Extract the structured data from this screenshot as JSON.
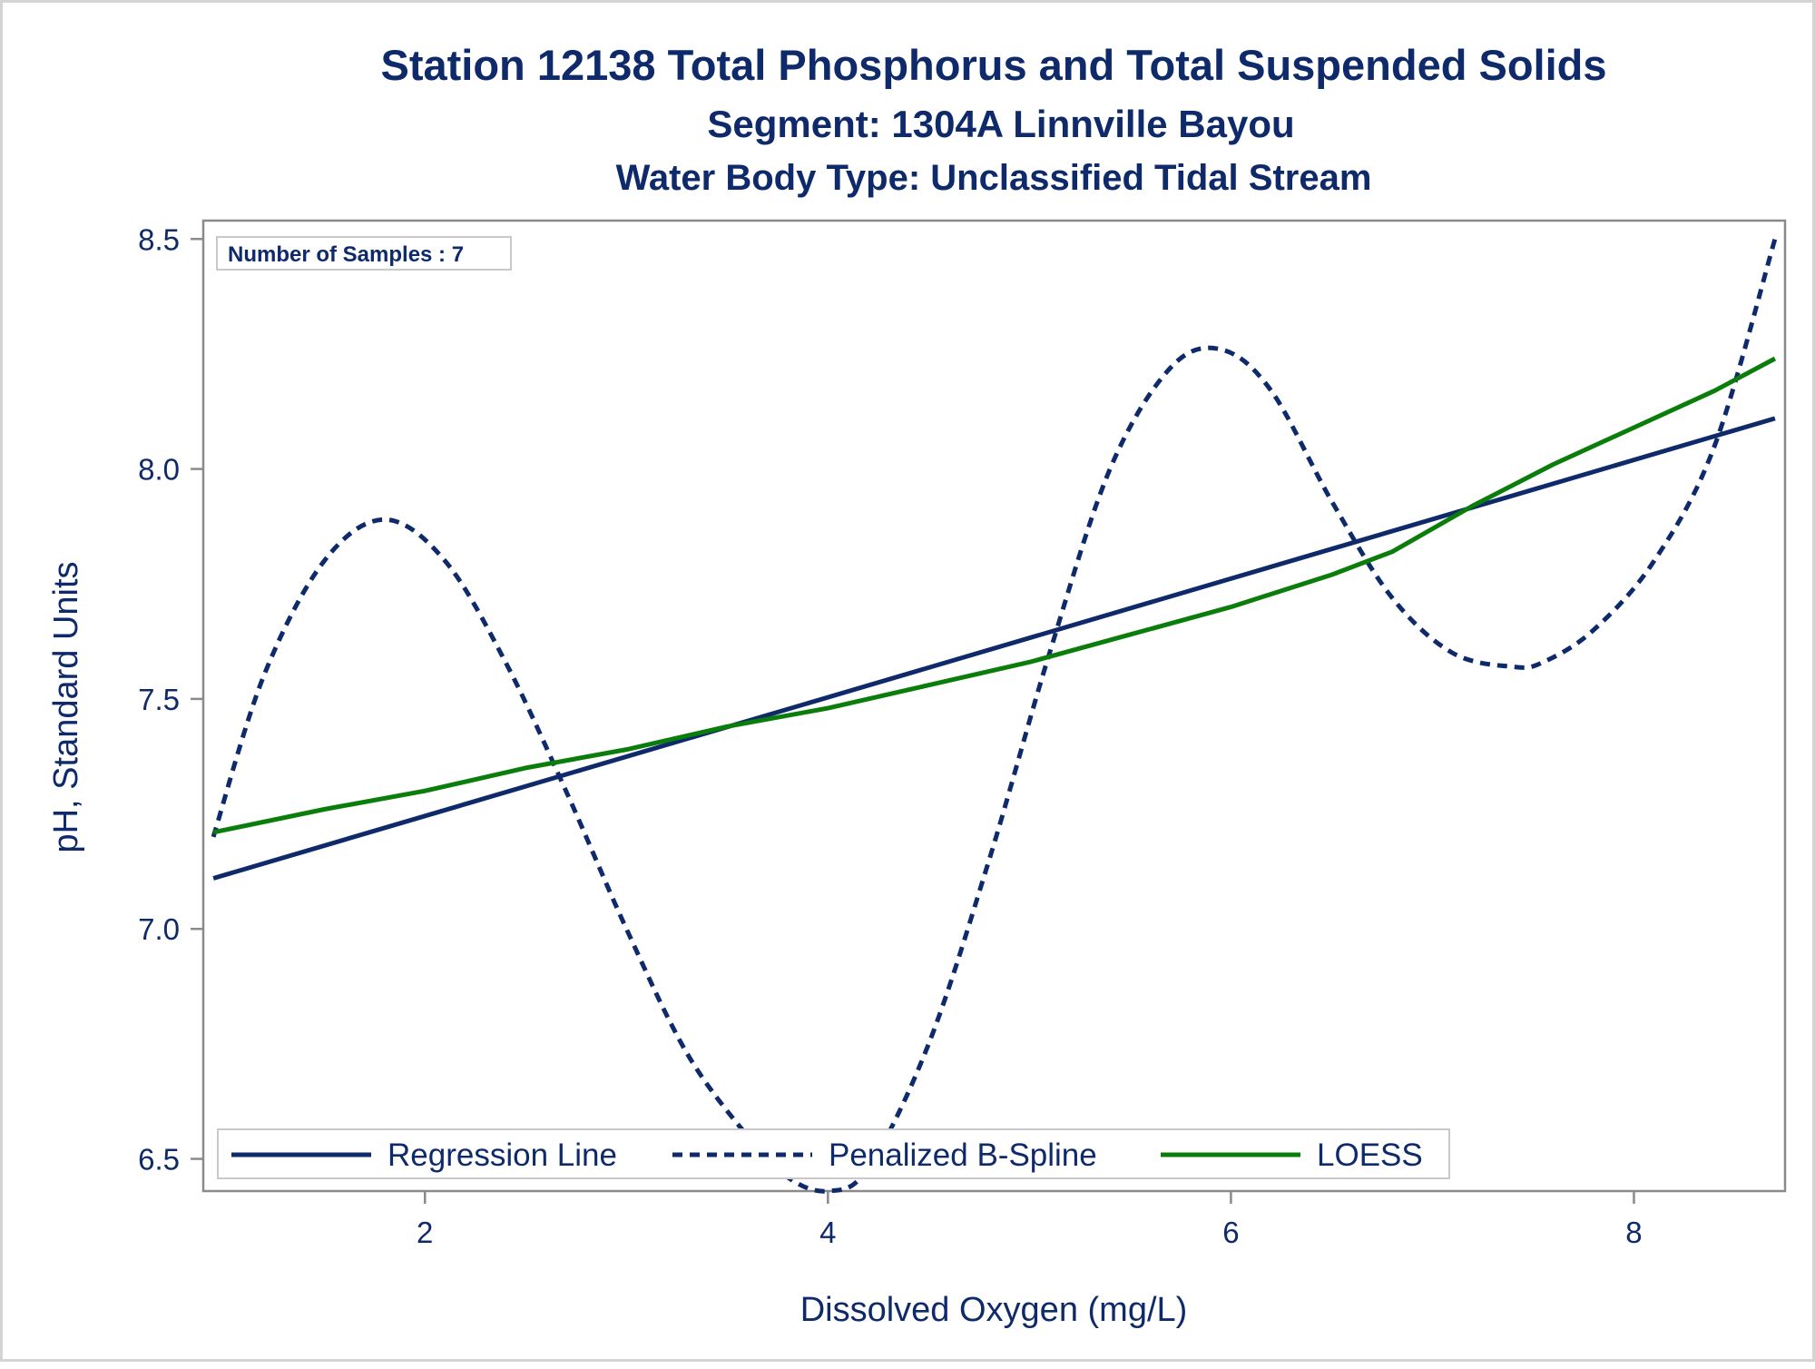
{
  "chart_data": {
    "type": "line",
    "title": "Station 12138  Total Phosphorus and Total Suspended Solids",
    "subtitle": "Segment: 1304A  Linnville Bayou",
    "subtitle2": "Water Body Type: Unclassified Tidal Stream",
    "xlabel": "Dissolved Oxygen (mg/L)",
    "ylabel": "pH, Standard Units",
    "xlim": [
      0.9,
      8.75
    ],
    "ylim": [
      6.43,
      8.54
    ],
    "xticks": [
      2,
      4,
      6,
      8
    ],
    "xtick_labels": [
      "2",
      "4",
      "6",
      "8"
    ],
    "yticks": [
      6.5,
      7.0,
      7.5,
      8.0,
      8.5
    ],
    "ytick_labels": [
      "6.5",
      "7.0",
      "7.5",
      "8.0",
      "8.5"
    ],
    "grid": false,
    "legend_position": "bottom-inside",
    "inset_label": "Number of Samples : 7",
    "series": [
      {
        "name": "Regression Line",
        "style": "solid",
        "color": "#0f2a6b",
        "x": [
          0.95,
          8.7
        ],
        "y": [
          7.11,
          8.11
        ]
      },
      {
        "name": "Penalized B-Spline",
        "style": "dashed",
        "color": "#0f2a6b",
        "x": [
          0.95,
          1.2,
          1.5,
          1.8,
          2.1,
          2.4,
          2.7,
          3.0,
          3.3,
          3.6,
          3.8,
          4.0,
          4.2,
          4.5,
          4.8,
          5.1,
          5.4,
          5.7,
          5.95,
          6.2,
          6.5,
          6.8,
          7.1,
          7.4,
          7.55,
          7.8,
          8.1,
          8.4,
          8.7
        ],
        "y": [
          7.2,
          7.55,
          7.8,
          7.89,
          7.8,
          7.58,
          7.3,
          7.0,
          6.73,
          6.55,
          6.46,
          6.43,
          6.48,
          6.75,
          7.15,
          7.6,
          8.0,
          8.22,
          8.26,
          8.17,
          7.93,
          7.72,
          7.6,
          7.57,
          7.58,
          7.65,
          7.8,
          8.05,
          8.5
        ]
      },
      {
        "name": "LOESS",
        "style": "solid",
        "color": "#0b7d0b",
        "x": [
          0.95,
          1.5,
          2.0,
          2.5,
          3.0,
          3.5,
          4.0,
          4.5,
          5.0,
          5.5,
          6.0,
          6.5,
          6.8,
          7.2,
          7.6,
          8.0,
          8.4,
          8.7
        ],
        "y": [
          7.21,
          7.26,
          7.3,
          7.35,
          7.39,
          7.44,
          7.48,
          7.53,
          7.58,
          7.64,
          7.7,
          7.77,
          7.82,
          7.92,
          8.01,
          8.09,
          8.17,
          8.24
        ]
      }
    ]
  }
}
